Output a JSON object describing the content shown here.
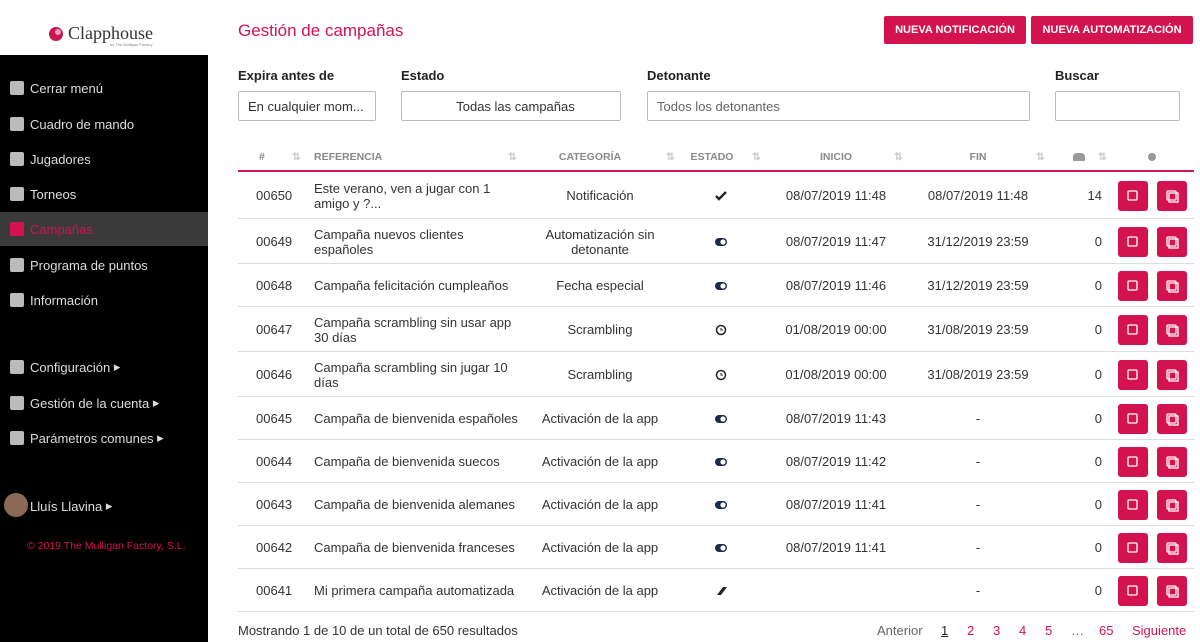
{
  "sidebar": {
    "logo": "Clapphouse",
    "logo_subtitle": "by The Mulligan Factory",
    "menu": [
      "Cerrar menú",
      "Cuadro de mando",
      "Jugadores",
      "Torneos",
      "Campañas",
      "Programa de puntos",
      "Información"
    ],
    "settings": [
      "Configuración",
      "Gestión de la cuenta",
      "Parámetros comunes"
    ],
    "user": "Lluís Llavina",
    "copyright": "© 2019 The Mulligan Factory, S.L."
  },
  "header": {
    "title": "Gestión de campañas",
    "buttons": [
      "NUEVA NOTIFICACIÓN",
      "NUEVA AUTOMATIZACIÓN"
    ]
  },
  "filters": [
    {
      "label": "Expira antes de",
      "value": "En cualquier mom..."
    },
    {
      "label": "Estado",
      "value": "Todas las campañas"
    },
    {
      "label": "Detonante",
      "placeholder": "Todos los detonantes"
    },
    {
      "label": "Buscar"
    }
  ],
  "table": {
    "columns": [
      "#",
      "REFERENCIA",
      "CATEGORÍA",
      "ESTADO",
      "INICIO",
      "FIN"
    ],
    "rows": [
      [
        "00650",
        "Este verano, ven a jugar con 1 amigo y ?...",
        "Notificación",
        "08/07/2019 11:48",
        "08/07/2019 11:48",
        14
      ],
      [
        "00649",
        "Campaña nuevos clientes españoles",
        "Automatización sin detonante",
        "08/07/2019 11:47",
        "31/12/2019 23:59",
        0
      ],
      [
        "00648",
        "Campaña felicitación cumpleaños",
        "Fecha especial",
        "08/07/2019 11:46",
        "31/12/2019 23:59",
        0
      ],
      [
        "00647",
        "Campaña scrambling sin usar app 30 días",
        "Scrambling",
        "01/08/2019 00:00",
        "31/08/2019 23:59",
        0
      ],
      [
        "00646",
        "Campaña scrambling sin jugar 10 días",
        "Scrambling",
        "01/08/2019 00:00",
        "31/08/2019 23:59",
        0
      ],
      [
        "00645",
        "Campaña de bienvenida españoles",
        "Activación de la app",
        "08/07/2019 11:43",
        "-",
        0
      ],
      [
        "00644",
        "Campaña de bienvenida suecos",
        "Activación de la app",
        "08/07/2019 11:42",
        "-",
        0
      ],
      [
        "00643",
        "Campaña de bienvenida alemanes",
        "Activación de la app",
        "08/07/2019 11:41",
        "-",
        0
      ],
      [
        "00642",
        "Campaña de bienvenida franceses",
        "Activación de la app",
        "08/07/2019 11:41",
        "-",
        0
      ],
      [
        "00641",
        "Mi primera campaña automatizada",
        "Activación de la app",
        null,
        "-",
        0
      ]
    ]
  },
  "footer": {
    "summary": "Mostrando 1 de 10 de un total de 650 resultados",
    "pagination": [
      "Anterior",
      "1",
      "2",
      "3",
      "4",
      "5",
      "…",
      "65",
      "Siguiente"
    ]
  }
}
